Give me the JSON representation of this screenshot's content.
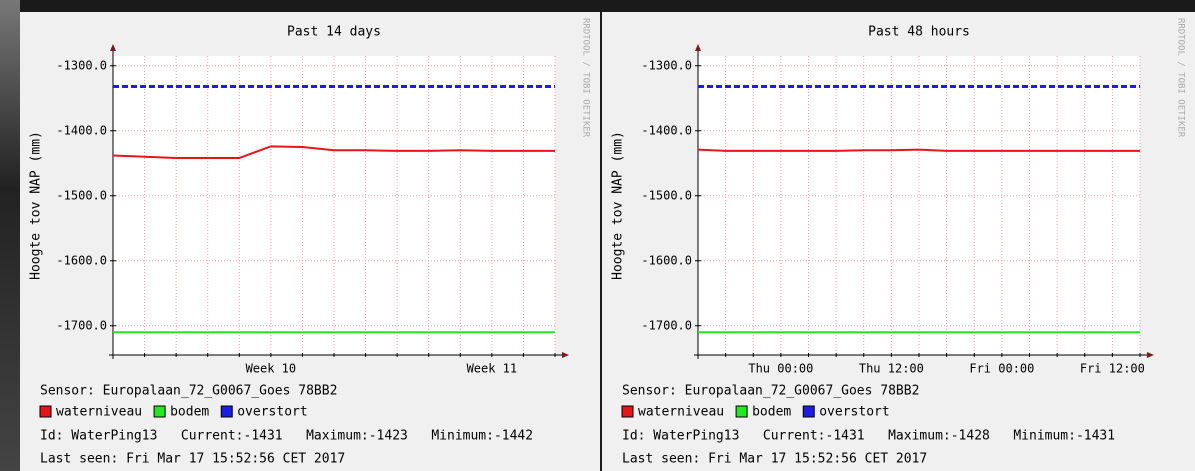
{
  "chart_data": [
    {
      "type": "line",
      "title": "Past 14 days",
      "y_label": "Hoogte tov NAP (mm)",
      "watermark": "RRDTOOL / TOBI OETIKER",
      "categories": [
        null,
        null,
        null,
        null,
        null,
        "Week 10",
        null,
        null,
        null,
        null,
        null,
        null,
        "Week 11",
        null,
        null
      ],
      "series": [
        {
          "name": "waterniveau",
          "color": "#e8141b",
          "line_style": "solid",
          "values": [
            -1438,
            -1440,
            -1442,
            -1442,
            -1442,
            -1424,
            -1425,
            -1430,
            -1430,
            -1431,
            -1431,
            -1430,
            -1431,
            -1431,
            -1431
          ]
        },
        {
          "name": "bodem",
          "color": "#22e81e",
          "line_style": "solid",
          "values": [
            -1710,
            -1710,
            -1710,
            -1710,
            -1710,
            -1710,
            -1710,
            -1710,
            -1710,
            -1710,
            -1710,
            -1710,
            -1710,
            -1710,
            -1710
          ]
        },
        {
          "name": "overstort",
          "color": "#1c1ce6",
          "line_style": "dashed",
          "values": [
            -1332,
            -1332,
            -1332,
            -1332,
            -1332,
            -1332,
            -1332,
            -1332,
            -1332,
            -1332,
            -1332,
            -1332,
            -1332,
            -1332,
            -1332
          ]
        }
      ],
      "ylim": [
        -1745,
        -1285
      ],
      "yticks": [
        {
          "value": -1300,
          "label": "-1300.0"
        },
        {
          "value": -1400,
          "label": "-1400.0"
        },
        {
          "value": -1500,
          "label": "-1500.0"
        },
        {
          "value": -1600,
          "label": "-1600.0"
        },
        {
          "value": -1700,
          "label": "-1700.0"
        }
      ],
      "grid": true,
      "sensor": "Sensor: Europalaan_72_G0067_Goes 78BB2",
      "status": "Id: WaterPing13   Current:-1431   Maximum:-1423   Minimum:-1442",
      "last_seen": "Last seen: Fri Mar 17 15:52:56 CET 2017"
    },
    {
      "type": "line",
      "title": "Past 48 hours",
      "y_label": "Hoogte tov NAP (mm)",
      "watermark": "RRDTOOL / TOBI OETIKER",
      "categories": [
        null,
        null,
        null,
        "Thu 00:00",
        null,
        null,
        null,
        "Thu 12:00",
        null,
        null,
        null,
        "Fri 00:00",
        null,
        null,
        null,
        "Fri 12:00",
        null
      ],
      "series": [
        {
          "name": "waterniveau",
          "color": "#e8141b",
          "line_style": "solid",
          "values": [
            -1429,
            -1431,
            -1431,
            -1431,
            -1431,
            -1431,
            -1430,
            -1430,
            -1429,
            -1431,
            -1431,
            -1431,
            -1431,
            -1431,
            -1431,
            -1431,
            -1431
          ]
        },
        {
          "name": "bodem",
          "color": "#22e81e",
          "line_style": "solid",
          "values": [
            -1710,
            -1710,
            -1710,
            -1710,
            -1710,
            -1710,
            -1710,
            -1710,
            -1710,
            -1710,
            -1710,
            -1710,
            -1710,
            -1710,
            -1710,
            -1710,
            -1710
          ]
        },
        {
          "name": "overstort",
          "color": "#1c1ce6",
          "line_style": "dashed",
          "values": [
            -1332,
            -1332,
            -1332,
            -1332,
            -1332,
            -1332,
            -1332,
            -1332,
            -1332,
            -1332,
            -1332,
            -1332,
            -1332,
            -1332,
            -1332,
            -1332,
            -1332
          ]
        }
      ],
      "ylim": [
        -1745,
        -1285
      ],
      "yticks": [
        {
          "value": -1300,
          "label": "-1300.0"
        },
        {
          "value": -1400,
          "label": "-1400.0"
        },
        {
          "value": -1500,
          "label": "-1500.0"
        },
        {
          "value": -1600,
          "label": "-1600.0"
        },
        {
          "value": -1700,
          "label": "-1700.0"
        }
      ],
      "grid": true,
      "sensor": "Sensor: Europalaan_72_G0067_Goes 78BB2",
      "status": "Id: WaterPing13   Current:-1431   Maximum:-1428   Minimum:-1431",
      "last_seen": "Last seen: Fri Mar 17 15:52:56 CET 2017"
    }
  ]
}
